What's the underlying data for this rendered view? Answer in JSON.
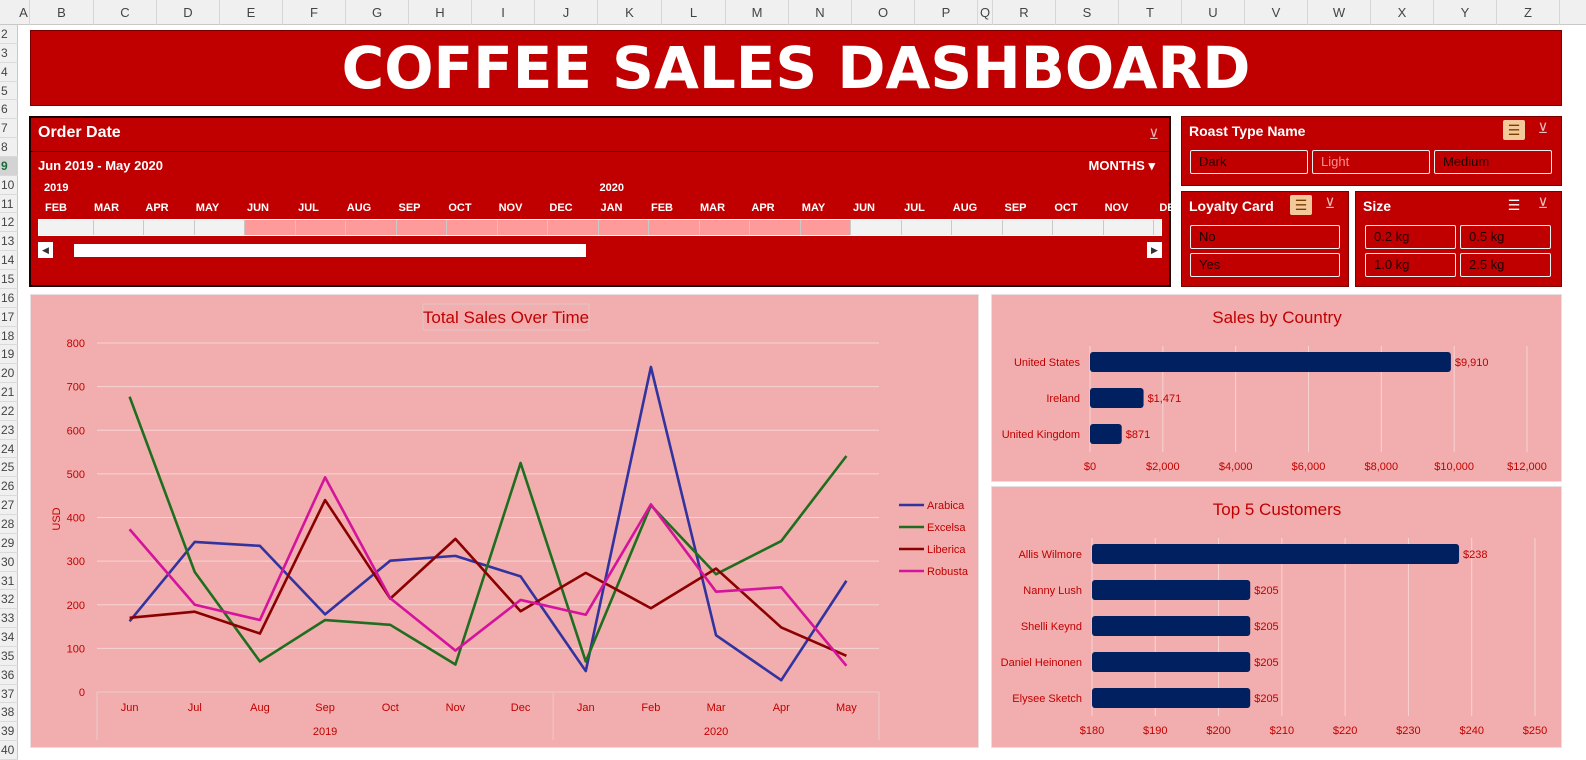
{
  "sheet": {
    "columns": [
      "A",
      "B",
      "C",
      "D",
      "E",
      "F",
      "G",
      "H",
      "I",
      "J",
      "K",
      "L",
      "M",
      "N",
      "O",
      "P",
      "Q",
      "R",
      "S",
      "T",
      "U",
      "V",
      "W",
      "X",
      "Y",
      "Z"
    ],
    "rows": [
      "2",
      "3",
      "4",
      "5",
      "6",
      "7",
      "8",
      "9",
      "10",
      "11",
      "12",
      "13",
      "14",
      "15",
      "16",
      "17",
      "18",
      "19",
      "20",
      "21",
      "22",
      "23",
      "24",
      "25",
      "26",
      "27",
      "28",
      "29",
      "30",
      "31",
      "32",
      "33",
      "34",
      "35",
      "36",
      "37",
      "38",
      "39",
      "40"
    ],
    "selected_row": "9"
  },
  "title": "COFFEE SALES DASHBOARD",
  "timeline": {
    "title": "Order Date",
    "range_label": "Jun 2019 - May 2020",
    "level_label": "MONTHS",
    "years": [
      "2019",
      "2020"
    ],
    "months": [
      "FEB",
      "MAR",
      "APR",
      "MAY",
      "JUN",
      "JUL",
      "AUG",
      "SEP",
      "OCT",
      "NOV",
      "DEC",
      "JAN",
      "FEB",
      "MAR",
      "APR",
      "MAY",
      "JUN",
      "JUL",
      "AUG",
      "SEP",
      "OCT",
      "NOV",
      "DE"
    ],
    "selected_months": [
      4,
      5,
      6,
      7,
      8,
      9,
      10,
      11,
      12,
      13,
      14,
      15
    ]
  },
  "slicers": {
    "roast": {
      "title": "Roast Type Name",
      "items": [
        {
          "label": "Dark",
          "active": true
        },
        {
          "label": "Light",
          "active": false
        },
        {
          "label": "Medium",
          "active": true
        }
      ]
    },
    "loyalty": {
      "title": "Loyalty Card",
      "items": [
        {
          "label": "No",
          "active": true
        },
        {
          "label": "Yes",
          "active": true
        }
      ]
    },
    "size": {
      "title": "Size",
      "items": [
        {
          "label": "0.2 kg",
          "active": true
        },
        {
          "label": "0.5 kg",
          "active": true
        },
        {
          "label": "1.0 kg",
          "active": true
        },
        {
          "label": "2.5 kg",
          "active": true
        }
      ]
    }
  },
  "colors": {
    "accent": "#c00000",
    "panel_bg": "#f2aeae",
    "bar": "#002060"
  },
  "chart_data": [
    {
      "type": "line",
      "title": "Total Sales Over Time",
      "ylabel": "USD",
      "ylim": [
        0,
        800
      ],
      "yticks": [
        0,
        100,
        200,
        300,
        400,
        500,
        600,
        700,
        800
      ],
      "categories": [
        "Jun",
        "Jul",
        "Aug",
        "Sep",
        "Oct",
        "Nov",
        "Dec",
        "Jan",
        "Feb",
        "Mar",
        "Apr",
        "May"
      ],
      "groups": [
        {
          "label": "2019",
          "span": 7
        },
        {
          "label": "2020",
          "span": 5
        }
      ],
      "series": [
        {
          "name": "Arabica",
          "color": "#3333a0",
          "values": [
            162,
            344,
            335,
            178,
            301,
            312,
            265,
            48,
            745,
            130,
            27,
            255
          ]
        },
        {
          "name": "Excelsa",
          "color": "#1f6e1f",
          "values": [
            677,
            275,
            70,
            165,
            154,
            63,
            525,
            70,
            428,
            270,
            346,
            541
          ]
        },
        {
          "name": "Liberica",
          "color": "#8b0000",
          "values": [
            170,
            184,
            134,
            440,
            214,
            351,
            185,
            273,
            192,
            283,
            148,
            83
          ]
        },
        {
          "name": "Robusta",
          "color": "#d4149c",
          "values": [
            373,
            200,
            165,
            492,
            215,
            95,
            211,
            177,
            430,
            230,
            240,
            60
          ]
        }
      ]
    },
    {
      "type": "bar",
      "title": "Sales by Country",
      "categories": [
        "United States",
        "Ireland",
        "United Kingdom"
      ],
      "values": [
        9910,
        1471,
        871
      ],
      "value_labels": [
        "$9,910",
        "$1,471",
        "$871"
      ],
      "xlim": [
        0,
        12000
      ],
      "xtick_labels": [
        "$0",
        "$2,000",
        "$4,000",
        "$6,000",
        "$8,000",
        "$10,000",
        "$12,000"
      ]
    },
    {
      "type": "bar",
      "title": "Top 5 Customers",
      "categories": [
        "Allis Wilmore",
        "Nanny Lush",
        "Shelli Keynd",
        "Daniel Heinonen",
        "Elysee Sketch"
      ],
      "values": [
        238,
        205,
        205,
        205,
        205
      ],
      "value_labels": [
        "$238",
        "$205",
        "$205",
        "$205",
        "$205"
      ],
      "xlim": [
        180,
        250
      ],
      "xtick_labels": [
        "$180",
        "$190",
        "$200",
        "$210",
        "$220",
        "$230",
        "$240",
        "$250"
      ]
    }
  ]
}
